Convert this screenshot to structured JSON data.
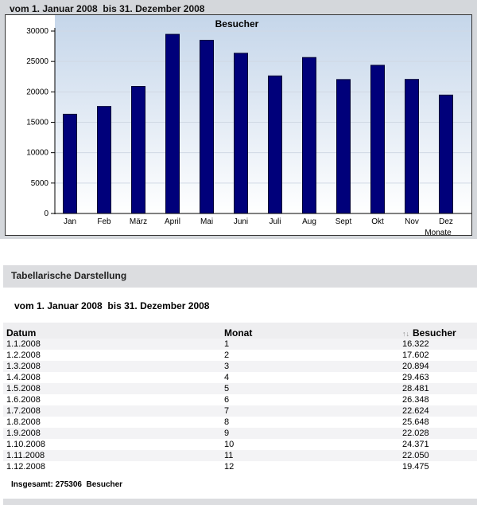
{
  "header": {
    "date_range": "vom 1. Januar 2008  bis 31. Dezember 2008"
  },
  "chart_data": {
    "type": "bar",
    "title": "Besucher",
    "xlabel": "Monate",
    "ylabel": "",
    "categories": [
      "Jan",
      "Feb",
      "März",
      "April",
      "Mai",
      "Juni",
      "Juli",
      "Aug",
      "Sept",
      "Okt",
      "Nov",
      "Dez"
    ],
    "values": [
      16322,
      17602,
      20894,
      29463,
      28481,
      26348,
      22624,
      25648,
      22028,
      24371,
      22050,
      19475
    ],
    "ylim": [
      0,
      30000
    ],
    "yticks": [
      0,
      5000,
      10000,
      15000,
      20000,
      25000,
      30000
    ],
    "grid": true,
    "colors": {
      "bar_fill": "#00007a",
      "bar_stroke": "#000033",
      "plot_bg_top": "#c5d6ea",
      "plot_bg_bottom": "#ffffff",
      "grid": "#d0d8e4"
    }
  },
  "table_section": {
    "title": "Tabellarische Darstellung",
    "date_range": "vom 1. Januar 2008  bis 31. Dezember 2008",
    "columns": [
      "Datum",
      "Monat",
      "Besucher"
    ],
    "sort_icon": "sort-arrows-icon",
    "rows": [
      [
        "1.1.2008",
        "1",
        "16.322"
      ],
      [
        "1.2.2008",
        "2",
        "17.602"
      ],
      [
        "1.3.2008",
        "3",
        "20.894"
      ],
      [
        "1.4.2008",
        "4",
        "29.463"
      ],
      [
        "1.5.2008",
        "5",
        "28.481"
      ],
      [
        "1.6.2008",
        "6",
        "26.348"
      ],
      [
        "1.7.2008",
        "7",
        "22.624"
      ],
      [
        "1.8.2008",
        "8",
        "25.648"
      ],
      [
        "1.9.2008",
        "9",
        "22.028"
      ],
      [
        "1.10.2008",
        "10",
        "24.371"
      ],
      [
        "1.11.2008",
        "11",
        "22.050"
      ],
      [
        "1.12.2008",
        "12",
        "19.475"
      ]
    ],
    "total": "Insgesamt: 275306  Besucher"
  }
}
